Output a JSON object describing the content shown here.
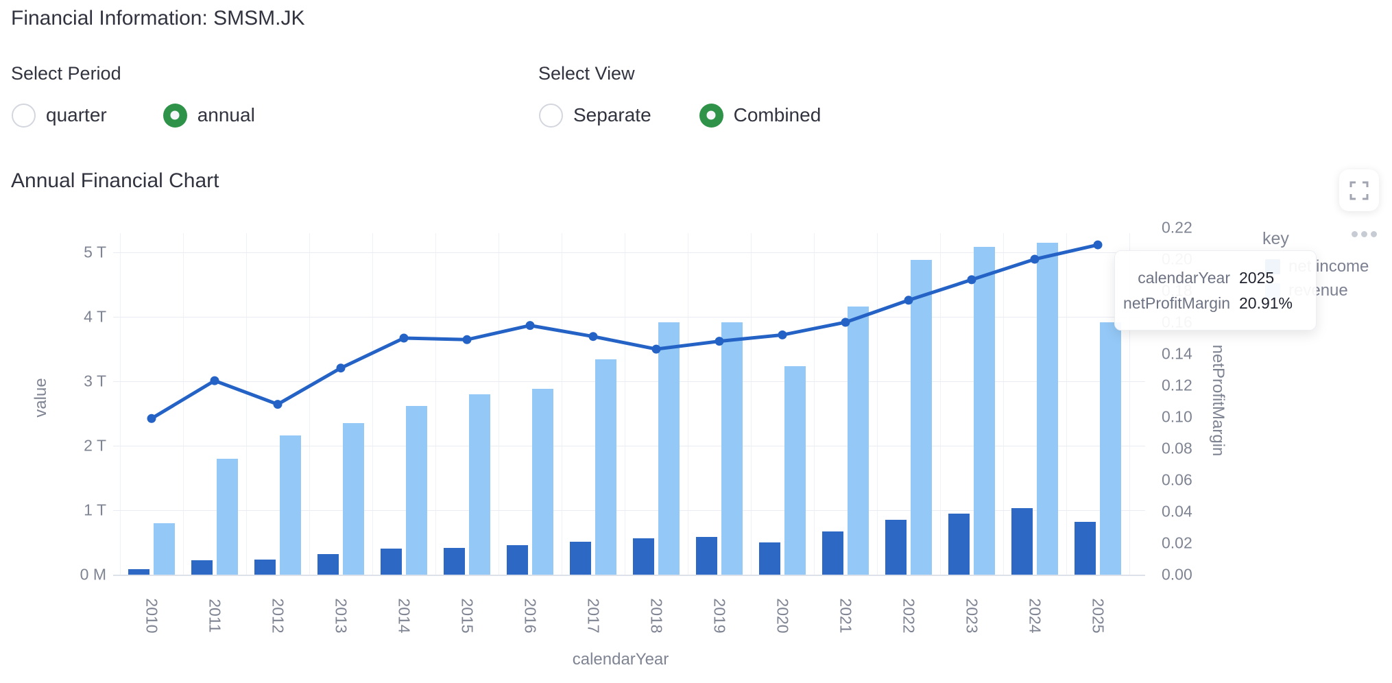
{
  "page": {
    "title": "Financial Information: SMSM.JK"
  },
  "controls": {
    "period": {
      "label": "Select Period",
      "options": [
        {
          "label": "quarter",
          "selected": false
        },
        {
          "label": "annual",
          "selected": true
        }
      ]
    },
    "view": {
      "label": "Select View",
      "options": [
        {
          "label": "Separate",
          "selected": false
        },
        {
          "label": "Combined",
          "selected": true
        }
      ]
    }
  },
  "chart_section": {
    "title": "Annual Financial Chart",
    "fullscreen_icon": "fullscreen-expand-icon",
    "more_options_icon": "ellipsis-icon"
  },
  "legend": {
    "title": "key",
    "items": [
      {
        "label": "net income",
        "color": "#2D68C4"
      },
      {
        "label": "revenue",
        "color": "#94C8F6"
      }
    ]
  },
  "tooltip": {
    "rows": [
      {
        "label": "calendarYear",
        "value": "2025"
      },
      {
        "label": "netProfitMargin",
        "value": "20.91%"
      }
    ]
  },
  "chart_data": {
    "type": "bar+line",
    "title": "Annual Financial Chart",
    "categories": [
      2010,
      2011,
      2012,
      2013,
      2014,
      2015,
      2016,
      2017,
      2018,
      2019,
      2020,
      2021,
      2022,
      2023,
      2024,
      2025
    ],
    "series": [
      {
        "name": "net income",
        "type": "bar",
        "axis": "left",
        "color": "#2D68C4",
        "unit": "T",
        "values": [
          0.08,
          0.22,
          0.23,
          0.32,
          0.4,
          0.42,
          0.46,
          0.51,
          0.56,
          0.58,
          0.5,
          0.67,
          0.85,
          0.95,
          1.03,
          0.82
        ]
      },
      {
        "name": "revenue",
        "type": "bar",
        "axis": "left",
        "color": "#94C8F6",
        "unit": "T",
        "values": [
          0.8,
          1.8,
          2.16,
          2.35,
          2.62,
          2.8,
          2.88,
          3.34,
          3.92,
          3.92,
          3.23,
          4.16,
          4.88,
          5.08,
          5.15,
          3.92
        ]
      },
      {
        "name": "netProfitMargin",
        "type": "line",
        "axis": "right",
        "color": "#2463C5",
        "values": [
          0.099,
          0.123,
          0.108,
          0.131,
          0.15,
          0.149,
          0.158,
          0.151,
          0.143,
          0.148,
          0.152,
          0.16,
          0.174,
          0.187,
          0.2,
          0.2091
        ]
      }
    ],
    "xlabel": "calendarYear",
    "y_left": {
      "title": "value",
      "tick_labels": [
        "0 M",
        "1 T",
        "2 T",
        "3 T",
        "4 T",
        "5 T"
      ],
      "tick_values": [
        0,
        1,
        2,
        3,
        4,
        5
      ],
      "ylim": [
        0,
        5.5
      ]
    },
    "y_right": {
      "title": "netProfitMargin",
      "tick_values": [
        0.0,
        0.02,
        0.04,
        0.06,
        0.08,
        0.1,
        0.12,
        0.14,
        0.16,
        0.18,
        0.2,
        0.22
      ],
      "ylim": [
        0,
        0.22
      ]
    },
    "grid": true,
    "legend_position": "right",
    "hovered_point": {
      "calendarYear": 2025,
      "netProfitMargin": "20.91%"
    }
  },
  "colors": {
    "accent_green": "#2E9348",
    "net_income_bar": "#2D68C4",
    "revenue_bar": "#94C8F6",
    "margin_line": "#2463C5",
    "axis_text": "#7f8493",
    "gridline": "#e9ecf2",
    "heading_text": "#31333F"
  }
}
